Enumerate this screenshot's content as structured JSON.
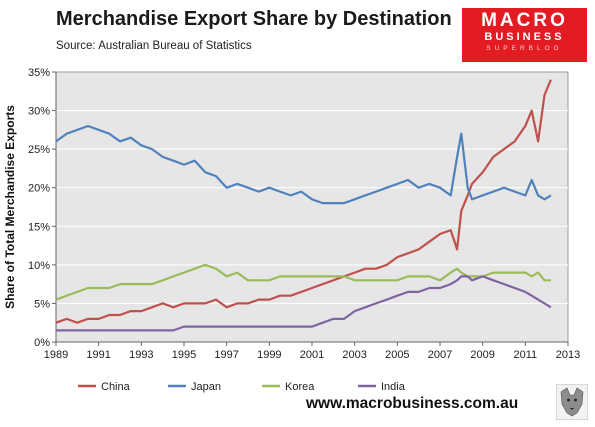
{
  "header": {
    "title": "Merchandise  Export  Share  by  Destination",
    "source": "Source:  Australian Bureau of Statistics"
  },
  "logo": {
    "line1": "MACRO",
    "line2": "BUSINESS",
    "line3": "SUPERBLOG"
  },
  "footer": {
    "url": "www.macrobusiness.com.au"
  },
  "chart_data": {
    "type": "line",
    "title": "",
    "xlabel": "",
    "ylabel": "Share of Total Merchandise Exports",
    "xlim": [
      1989,
      2013
    ],
    "ylim": [
      0,
      35
    ],
    "x_ticks": [
      "1989",
      "1991",
      "1993",
      "1995",
      "1997",
      "1999",
      "2001",
      "2003",
      "2005",
      "2007",
      "2009",
      "2011",
      "2013"
    ],
    "y_ticks": [
      "0%",
      "5%",
      "10%",
      "15%",
      "20%",
      "25%",
      "30%",
      "35%"
    ],
    "grid": true,
    "legend": "bottom",
    "background": "#e6e6e6",
    "x": [
      1989,
      1989.5,
      1990,
      1990.5,
      1991,
      1991.5,
      1992,
      1992.5,
      1993,
      1993.5,
      1994,
      1994.5,
      1995,
      1995.5,
      1996,
      1996.5,
      1997,
      1997.5,
      1998,
      1998.5,
      1999,
      1999.5,
      2000,
      2000.5,
      2001,
      2001.5,
      2002,
      2002.5,
      2003,
      2003.5,
      2004,
      2004.5,
      2005,
      2005.5,
      2006,
      2006.5,
      2007,
      2007.5,
      2007.8,
      2008,
      2008.3,
      2008.5,
      2009,
      2009.5,
      2010,
      2010.5,
      2011,
      2011.3,
      2011.6,
      2011.9,
      2012.2
    ],
    "series": [
      {
        "name": "China",
        "color": "#c0504d",
        "values": [
          2.5,
          3,
          2.5,
          3,
          3,
          3.5,
          3.5,
          4,
          4,
          4.5,
          5,
          4.5,
          5,
          5,
          5,
          5.5,
          4.5,
          5,
          5,
          5.5,
          5.5,
          6,
          6,
          6.5,
          7,
          7.5,
          8,
          8.5,
          9,
          9.5,
          9.5,
          10,
          11,
          11.5,
          12,
          13,
          14,
          14.5,
          12,
          17,
          19,
          20.5,
          22,
          24,
          25,
          26,
          28,
          30,
          26,
          32,
          34
        ]
      },
      {
        "name": "Japan",
        "color": "#4f81bd",
        "values": [
          26,
          27,
          27.5,
          28,
          27.5,
          27,
          26,
          26.5,
          25.5,
          25,
          24,
          23.5,
          23,
          23.5,
          22,
          21.5,
          20,
          20.5,
          20,
          19.5,
          20,
          19.5,
          19,
          19.5,
          18.5,
          18,
          18,
          18,
          18.5,
          19,
          19.5,
          20,
          20.5,
          21,
          20,
          20.5,
          20,
          19,
          24,
          27,
          20,
          18.5,
          19,
          19.5,
          20,
          19.5,
          19,
          21,
          19,
          18.5,
          19
        ]
      },
      {
        "name": "Korea",
        "color": "#9bbb59",
        "values": [
          5.5,
          6,
          6.5,
          7,
          7,
          7,
          7.5,
          7.5,
          7.5,
          7.5,
          8,
          8.5,
          9,
          9.5,
          10,
          9.5,
          8.5,
          9,
          8,
          8,
          8,
          8.5,
          8.5,
          8.5,
          8.5,
          8.5,
          8.5,
          8.5,
          8,
          8,
          8,
          8,
          8,
          8.5,
          8.5,
          8.5,
          8,
          9,
          9.5,
          9,
          8.5,
          8.5,
          8.5,
          9,
          9,
          9,
          9,
          8.5,
          9,
          8,
          8
        ]
      },
      {
        "name": "India",
        "color": "#8064a2",
        "values": [
          1.5,
          1.5,
          1.5,
          1.5,
          1.5,
          1.5,
          1.5,
          1.5,
          1.5,
          1.5,
          1.5,
          1.5,
          2,
          2,
          2,
          2,
          2,
          2,
          2,
          2,
          2,
          2,
          2,
          2,
          2,
          2.5,
          3,
          3,
          4,
          4.5,
          5,
          5.5,
          6,
          6.5,
          6.5,
          7,
          7,
          7.5,
          8,
          8.5,
          8.5,
          8,
          8.5,
          8,
          7.5,
          7,
          6.5,
          6,
          5.5,
          5,
          4.5
        ]
      }
    ]
  }
}
